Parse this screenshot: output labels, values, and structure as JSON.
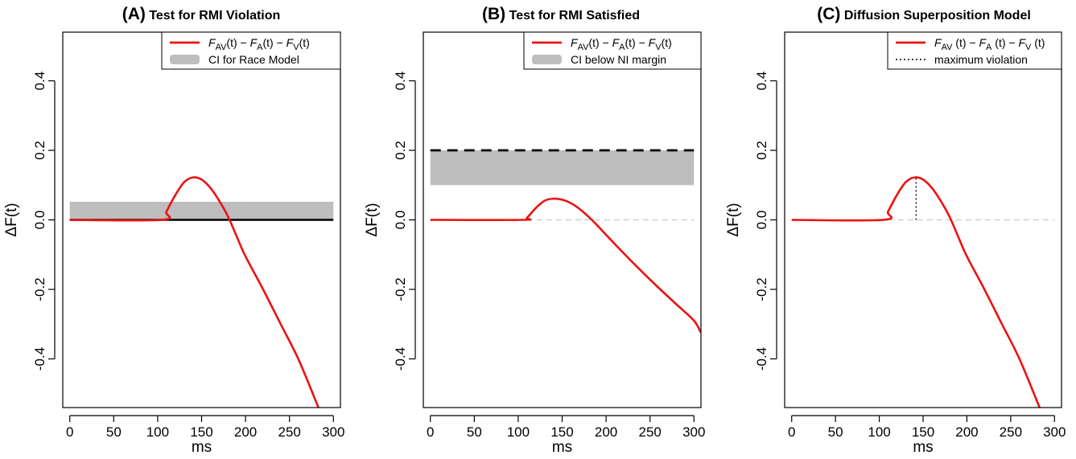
{
  "chart_data": [
    {
      "panel_letter": "(A)",
      "title": "Test for RMI Violation",
      "type": "line",
      "xlabel": "ms",
      "ylabel": "ΔF(t)",
      "xlim": [
        -8,
        308
      ],
      "ylim": [
        -0.54,
        0.54
      ],
      "x_ticks": [
        0,
        50,
        100,
        150,
        200,
        250,
        300
      ],
      "y_ticks": [
        -0.4,
        -0.2,
        0.0,
        0.2,
        0.4
      ],
      "y_tick_labels": [
        "-0.4",
        "-0.2",
        "0.0",
        "0.2",
        "0.4"
      ],
      "legend_position": "top-right",
      "legend": [
        {
          "kind": "line",
          "color": "#ee1111",
          "label": {
            "F1": "F",
            "s1": "AV",
            "a1": "(t) − ",
            "F2": "F",
            "s2": "A",
            "a2": "(t) − ",
            "F3": "F",
            "s3": "V",
            "a3": "(t)"
          }
        },
        {
          "kind": "band",
          "color": "#bebebe",
          "text": "CI for Race Model"
        }
      ],
      "band": {
        "x": [
          0,
          300
        ],
        "y": [
          0.0,
          0.052
        ],
        "color": "#bebebe"
      },
      "reference": {
        "y": 0.0,
        "style": "solid",
        "color": "#000000"
      },
      "series": {
        "color": "#ee1111",
        "x": [
          0,
          105,
          110,
          120,
          130,
          140,
          150,
          160,
          170,
          180,
          190,
          200,
          220,
          240,
          260,
          283
        ],
        "y": [
          0.0,
          0.0,
          0.024,
          0.071,
          0.108,
          0.122,
          0.116,
          0.092,
          0.055,
          0.01,
          -0.048,
          -0.105,
          -0.2,
          -0.3,
          -0.4,
          -0.54
        ]
      }
    },
    {
      "panel_letter": "(B)",
      "title": "Test for RMI Satisfied",
      "type": "line",
      "xlabel": "ms",
      "ylabel": "ΔF(t)",
      "xlim": [
        -8,
        308
      ],
      "ylim": [
        -0.54,
        0.54
      ],
      "x_ticks": [
        0,
        50,
        100,
        150,
        200,
        250,
        300
      ],
      "y_ticks": [
        -0.4,
        -0.2,
        0.0,
        0.2,
        0.4
      ],
      "y_tick_labels": [
        "-0.4",
        "-0.2",
        "0.0",
        "0.2",
        "0.4"
      ],
      "legend_position": "top-right",
      "legend": [
        {
          "kind": "line",
          "color": "#ee1111",
          "label": {
            "F1": "F",
            "s1": "AV",
            "a1": "(t) − ",
            "F2": "F",
            "s2": "A",
            "a2": "(t) − ",
            "F3": "F",
            "s3": "V",
            "a3": "(t)"
          }
        },
        {
          "kind": "band",
          "color": "#bebebe",
          "text": "CI below NI margin"
        }
      ],
      "band": {
        "x": [
          0,
          300
        ],
        "y": [
          0.1,
          0.2
        ],
        "color": "#bebebe"
      },
      "margin_line": {
        "y": 0.2,
        "x": [
          0,
          300
        ],
        "style": "dashed",
        "color": "#000000"
      },
      "reference": {
        "y": 0.0,
        "style": "dashed",
        "color": "#c8c8c8"
      },
      "series": {
        "color": "#ee1111",
        "x": [
          0,
          105,
          110,
          120,
          130,
          140,
          150,
          160,
          170,
          180,
          190,
          200,
          220,
          240,
          260,
          280,
          300,
          308
        ],
        "y": [
          0.0,
          0.0,
          0.006,
          0.034,
          0.055,
          0.061,
          0.058,
          0.048,
          0.031,
          0.009,
          -0.016,
          -0.043,
          -0.096,
          -0.147,
          -0.196,
          -0.243,
          -0.29,
          -0.325
        ]
      }
    },
    {
      "panel_letter": "(C)",
      "title": "Diffusion Superposition Model",
      "type": "line",
      "xlabel": "ms",
      "ylabel": "ΔF(t)",
      "xlim": [
        -8,
        308
      ],
      "ylim": [
        -0.54,
        0.54
      ],
      "x_ticks": [
        0,
        50,
        100,
        150,
        200,
        250,
        300
      ],
      "y_ticks": [
        -0.4,
        -0.2,
        0.0,
        0.2,
        0.4
      ],
      "y_tick_labels": [
        "-0.4",
        "-0.2",
        "0.0",
        "0.2",
        "0.4"
      ],
      "legend_position": "top-right",
      "legend": [
        {
          "kind": "line",
          "color": "#ee1111",
          "label": {
            "F1": "F",
            "s1": "AV",
            "a1": " (t) − ",
            "F2": "F",
            "s2": "A",
            "a2": " (t) − ",
            "F3": "F",
            "s3": "V",
            "a3": " (t)"
          }
        },
        {
          "kind": "dotted",
          "color": "#000000",
          "text": "maximum violation"
        }
      ],
      "reference": {
        "y": 0.0,
        "style": "dashed",
        "color": "#c8c8c8"
      },
      "max_violation": {
        "x": 142,
        "y": 0.122,
        "style": "dotted",
        "color": "#000000"
      },
      "series": {
        "color": "#ee1111",
        "x": [
          0,
          105,
          110,
          120,
          130,
          140,
          150,
          160,
          170,
          180,
          190,
          200,
          220,
          240,
          260,
          283
        ],
        "y": [
          0.0,
          0.0,
          0.024,
          0.071,
          0.108,
          0.122,
          0.116,
          0.092,
          0.055,
          0.01,
          -0.048,
          -0.105,
          -0.2,
          -0.3,
          -0.4,
          -0.54
        ]
      }
    }
  ]
}
